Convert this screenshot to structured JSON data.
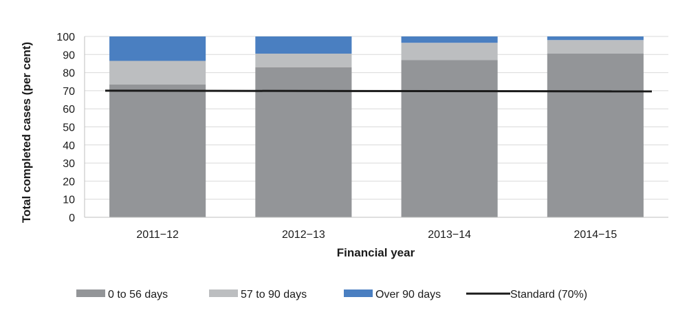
{
  "chart_data": {
    "type": "bar",
    "stacked": true,
    "title": "",
    "xlabel": "Financial year",
    "ylabel": "Total completed cases (per cent)",
    "categories": [
      "2011−12",
      "2012−13",
      "2013−14",
      "2014−15"
    ],
    "ylim": [
      0,
      100
    ],
    "yticks": [
      0,
      10,
      20,
      30,
      40,
      50,
      60,
      70,
      80,
      90,
      100
    ],
    "grid": true,
    "legend_position": "bottom",
    "series": [
      {
        "name": "0  to 56 days",
        "color": "#939598",
        "values": [
          73.5,
          83,
          87,
          90.5
        ]
      },
      {
        "name": "57 to 90 days",
        "color": "#bcbec0",
        "values": [
          13,
          7.5,
          9.5,
          7.5
        ]
      },
      {
        "name": "Over 90 days",
        "color": "#4a7fc1",
        "values": [
          13.5,
          9.5,
          3.5,
          2
        ]
      }
    ],
    "reference_line": {
      "name": "Standard (70%)",
      "value": 70,
      "color": "#1a1a1a"
    }
  }
}
